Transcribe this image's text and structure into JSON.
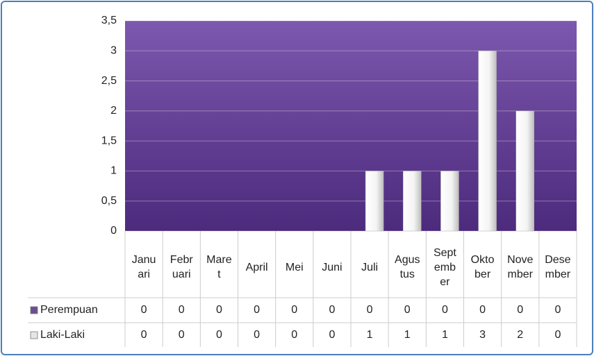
{
  "chart_data": {
    "type": "bar",
    "categories": [
      "Januari",
      "Februari",
      "Maret",
      "April",
      "Mei",
      "Juni",
      "Juli",
      "Agustus",
      "September",
      "Oktober",
      "November",
      "Desember"
    ],
    "series": [
      {
        "name": "Perempuan",
        "color": "#6b4f8f",
        "values": [
          0,
          0,
          0,
          0,
          0,
          0,
          0,
          0,
          0,
          0,
          0,
          0
        ]
      },
      {
        "name": "Laki-Laki",
        "color": "#e6e6e6",
        "values": [
          0,
          0,
          0,
          0,
          0,
          0,
          1,
          1,
          1,
          3,
          2,
          0
        ]
      }
    ],
    "ylim": [
      0,
      3.5
    ],
    "yticks": [
      0,
      {
        "value": 0.5,
        "label": "0,5"
      },
      1,
      {
        "value": 1.5,
        "label": "1,5"
      },
      2,
      {
        "value": 2.5,
        "label": "2,5"
      },
      3,
      {
        "value": 3.5,
        "label": "3,5"
      }
    ],
    "grid": true,
    "data_table": true
  }
}
